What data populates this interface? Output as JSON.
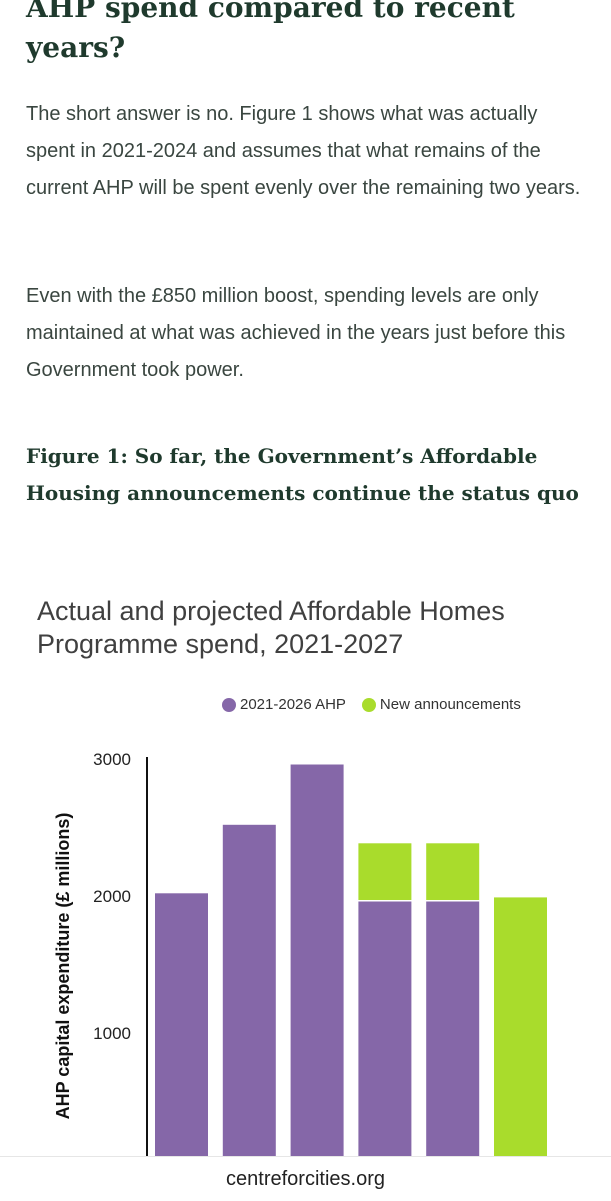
{
  "article": {
    "heading": "AHP spend compared to recent years?",
    "paragraph_1": "The short answer is no. Figure 1 shows what was actually spent in 2021-2024 and assumes that what remains of the current AHP will be spent evenly over the remaining two years.",
    "paragraph_2": "Even with the £850 million boost, spending levels are only maintained at what was achieved in the years just before this Government took power.",
    "figure_title": "Figure 1: So far, the Government’s Affordable Housing announcements continue the status quo"
  },
  "chart_data": {
    "type": "bar",
    "stacked": true,
    "title": "Actual and projected Affordable Homes Programme spend, 2021-2027",
    "xlabel": "",
    "ylabel": "AHP capital expenditure (£ millions)",
    "ylim": [
      0,
      3000
    ],
    "yticks": [
      1000,
      2000,
      3000
    ],
    "legend_position": "top-right",
    "grid": false,
    "categories": [
      "",
      "",
      "",
      "",
      "",
      ""
    ],
    "series": [
      {
        "name": "2021-2026 AHP",
        "color": "#8567a8",
        "values": [
          2020,
          2520,
          2960,
          1960,
          1960,
          0
        ]
      },
      {
        "name": "New announcements",
        "color": "#a9dc2c",
        "values": [
          0,
          0,
          0,
          425,
          425,
          1990
        ]
      }
    ]
  },
  "footer": {
    "source": "centreforcities.org"
  }
}
